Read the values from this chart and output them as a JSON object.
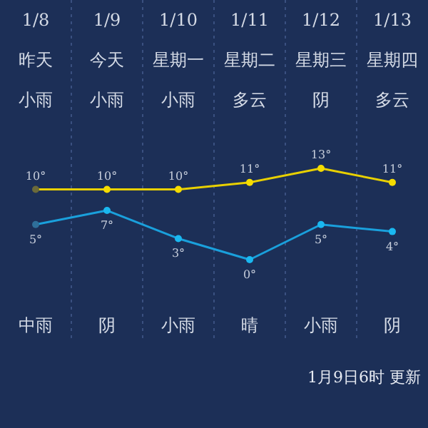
{
  "chart_data": {
    "type": "line",
    "categories": [
      "1/8",
      "1/9",
      "1/10",
      "1/11",
      "1/12",
      "1/13"
    ],
    "series": [
      {
        "color": "#e8d000",
        "colors": [
          "#6b6a3a",
          "#f5dc00",
          "#f5dc00",
          "#f5dc00",
          "#f5dc00",
          "#f5dc00"
        ],
        "values": [
          10,
          10,
          10,
          11,
          13,
          11
        ],
        "value_labels": [
          "10°",
          "10°",
          "10°",
          "11°",
          "13°",
          "11°"
        ]
      },
      {
        "color": "#1aa0dc",
        "colors": [
          "#2f6f9a",
          "#1ab8f0",
          "#1ab8f0",
          "#1ab8f0",
          "#1ab8f0",
          "#1ab8f0"
        ],
        "values": [
          5,
          7,
          3,
          0,
          5,
          4
        ],
        "value_labels": [
          "5°",
          "7°",
          "3°",
          "0°",
          "5°",
          "4°"
        ]
      }
    ],
    "grid": "x",
    "marker": "circle",
    "annotations": [
      "昨天",
      "今天",
      "星期一",
      "星期二",
      "星期三",
      "星期四",
      "小雨",
      "小雨",
      "小雨",
      "多云",
      "阴",
      "多云",
      "中雨",
      "阴",
      "小雨",
      "晴",
      "小雨",
      "阴",
      "1月9日6时 更新"
    ]
  }
}
